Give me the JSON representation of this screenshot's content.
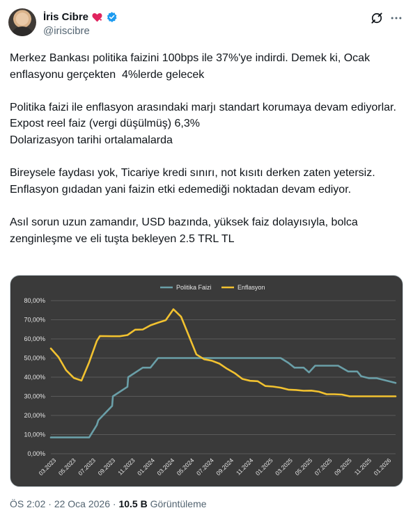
{
  "author": {
    "display_name": "İris Cibre",
    "handle": "@iriscibre",
    "badge_icon": "verified-badge-icon",
    "emoji_icon": "heart-icon"
  },
  "tweet": {
    "paragraphs": [
      "Merkez Bankası politika faizini 100bps ile 37%'ye indirdi. Demek ki, Ocak enflasyonu gerçekten  4%lerde gelecek",
      "Politika faizi ile enflasyon arasındaki marjı standart korumaya devam ediyorlar.\nExpost reel faiz (vergi düşülmüş) 6,3%\nDolarizasyon tarihi ortalamalarda",
      "Bireysele faydası yok, Ticariye kredi sınırı, not kısıtı derken zaten yetersiz. Enflasyon gıdadan yani faizin etki edemediği noktadan devam ediyor.",
      "Asıl sorun uzun zamandır, USD bazında, yüksek faiz dolayısıyla, bolca zenginleşme ve eli tuşta bekleyen 2.5 TRL TL"
    ]
  },
  "meta": {
    "time": "ÖS 2:02",
    "separator": "·",
    "date": "22 Oca 2026",
    "views_count": "10.5 B",
    "views_label": "Görüntüleme"
  },
  "colors": {
    "politika": "#6a9fa8",
    "enflasyon": "#f2c230",
    "chart_bg": "#3a3a3a",
    "grid": "#5a5a5a",
    "text_secondary": "#536471",
    "verified": "#1d9bf0",
    "heart": "#e0245e"
  },
  "chart_data": {
    "type": "line",
    "title": "",
    "xlabel": "",
    "ylabel": "",
    "ylim": [
      0,
      80
    ],
    "yticks": [
      "0,00%",
      "10,00%",
      "20,00%",
      "30,00%",
      "40,00%",
      "50,00%",
      "60,00%",
      "70,00%",
      "80,00%"
    ],
    "xticks": [
      "03.2023",
      "05.2023",
      "07.2023",
      "09.2023",
      "11.2023",
      "01.2024",
      "03.2024",
      "05.2024",
      "07.2024",
      "09.2024",
      "11.2024",
      "01.2025",
      "03.2025",
      "05.2025",
      "07.2025",
      "09.2025",
      "11.2025",
      "01.2026"
    ],
    "legend_position": "top-center",
    "grid": true,
    "series": [
      {
        "name": "Politika Faizi",
        "values": [
          [
            0,
            8.5
          ],
          [
            4.5,
            8.5
          ],
          [
            5,
            8.5
          ],
          [
            6,
            15
          ],
          [
            6.2,
            17.5
          ],
          [
            8,
            25
          ],
          [
            8.1,
            30
          ],
          [
            10,
            35
          ],
          [
            10.1,
            40
          ],
          [
            12,
            45
          ],
          [
            13,
            45
          ],
          [
            14,
            50
          ],
          [
            30,
            50
          ],
          [
            31,
            47.5
          ],
          [
            31.8,
            45
          ],
          [
            33,
            45
          ],
          [
            33.7,
            42.5
          ],
          [
            34.5,
            46
          ],
          [
            37.5,
            46
          ],
          [
            38.8,
            43
          ],
          [
            40,
            43
          ],
          [
            40.5,
            40.5
          ],
          [
            41.5,
            39.5
          ],
          [
            42.5,
            39.5
          ],
          [
            44,
            38
          ],
          [
            45,
            37
          ]
        ]
      },
      {
        "name": "Enflasyon",
        "values": [
          [
            0,
            55
          ],
          [
            1,
            50.5
          ],
          [
            2,
            43.6
          ],
          [
            3,
            39.6
          ],
          [
            4,
            38.2
          ],
          [
            5,
            47.8
          ],
          [
            6,
            58.9
          ],
          [
            6.4,
            61.5
          ],
          [
            8,
            61.4
          ],
          [
            9,
            61.4
          ],
          [
            10,
            62
          ],
          [
            11,
            64.8
          ],
          [
            12,
            64.9
          ],
          [
            13,
            67.1
          ],
          [
            14,
            68.5
          ],
          [
            15,
            69.8
          ],
          [
            16,
            75.5
          ],
          [
            17,
            71.6
          ],
          [
            18,
            61.8
          ],
          [
            19,
            51.9
          ],
          [
            20,
            49.4
          ],
          [
            21,
            48.6
          ],
          [
            22,
            47.1
          ],
          [
            23,
            44.4
          ],
          [
            24,
            42.1
          ],
          [
            25,
            39.1
          ],
          [
            26,
            38.1
          ],
          [
            27,
            37.9
          ],
          [
            28,
            35.4
          ],
          [
            29,
            35.1
          ],
          [
            30,
            34.5
          ],
          [
            31,
            33.5
          ],
          [
            32,
            33.3
          ],
          [
            33,
            32.9
          ],
          [
            34,
            33
          ],
          [
            35,
            32.4
          ],
          [
            36,
            31.1
          ],
          [
            37,
            31.1
          ],
          [
            38,
            30.9
          ],
          [
            39,
            30
          ],
          [
            45,
            30
          ]
        ]
      }
    ]
  }
}
